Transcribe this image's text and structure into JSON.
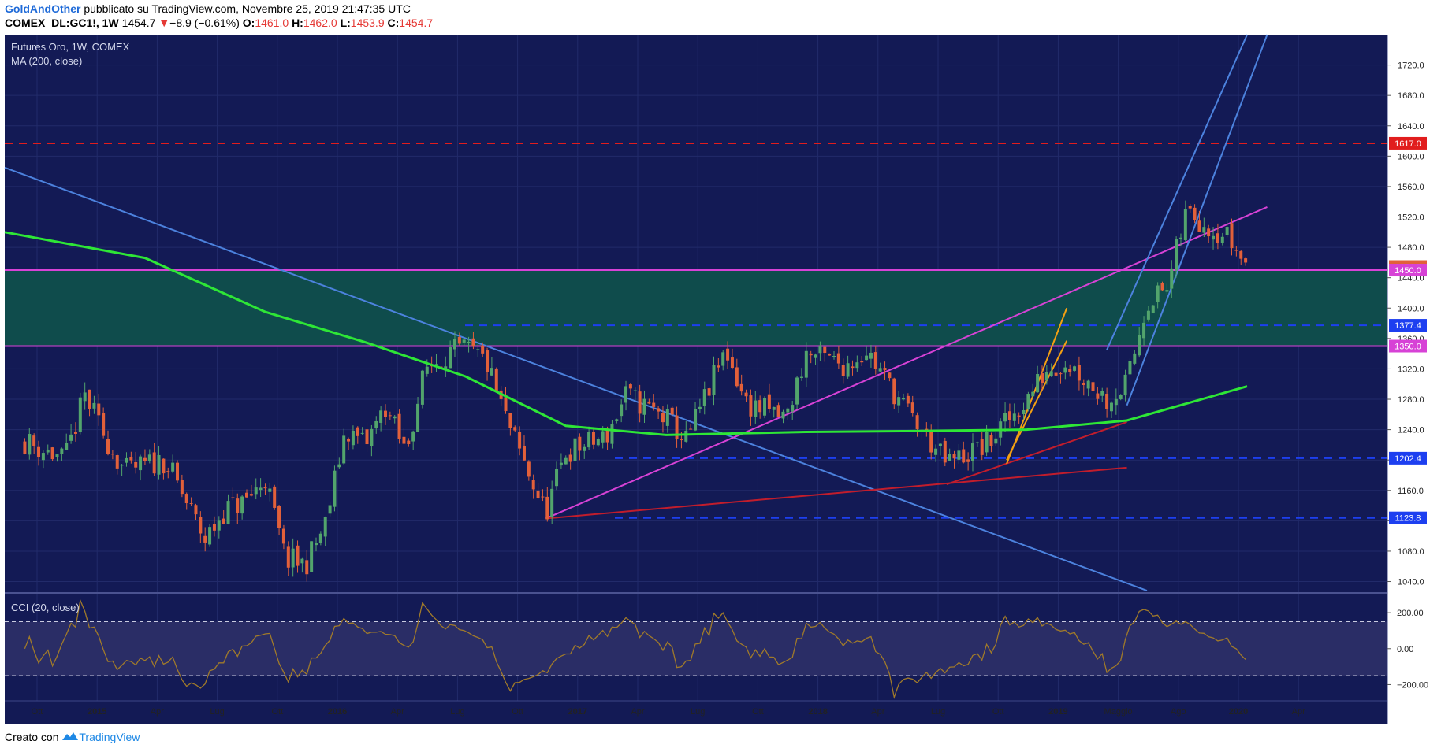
{
  "header": {
    "author": "GoldAndOther",
    "published": "pubblicato su TradingView.com, Novembre 25, 2019 21:47:35 UTC",
    "symbol": "COMEX_DL:GC1!, 1W",
    "last": "1454.7",
    "change": "−8.9 (−0.61%)",
    "o_label": "O:",
    "o": "1461.0",
    "h_label": "H:",
    "h": "1462.0",
    "l_label": "L:",
    "l": "1453.9",
    "c_label": "C:",
    "c": "1454.7"
  },
  "main_pane": {
    "title": "Futures Oro, 1W, COMEX",
    "indicator": "MA (200, close)"
  },
  "cci_pane": {
    "label": "CCI (20, close)"
  },
  "footer": {
    "prefix": "Creato con",
    "brand": "TradingView"
  },
  "colors": {
    "background": "#131a55",
    "grid": "#222b6a",
    "up": "#52a46c",
    "down": "#e2603a",
    "ma": "#2ee636",
    "trendline_blue": "#4c82de",
    "magenta": "#d742d6",
    "resistance_red": "#e11d1d",
    "support_blue": "#1d3ff0",
    "zone": "#0f4c4c",
    "orange": "#f4a012",
    "cci": "#a07a2a"
  },
  "chart_data": [
    {
      "type": "candlestick",
      "title": "Futures Oro, 1W, COMEX",
      "x_ticks": [
        "Ott",
        "2015",
        "Apr",
        "Lug",
        "Ott",
        "2016",
        "Apr",
        "Lug",
        "Ott",
        "2017",
        "Apr",
        "Lug",
        "Ott",
        "2018",
        "Apr",
        "Lug",
        "Ott",
        "2019",
        "Maggio",
        "Ago",
        "2020",
        "Apr"
      ],
      "y_ticks": [
        1040,
        1080,
        1120,
        1160,
        1200,
        1240,
        1280,
        1320,
        1360,
        1400,
        1440,
        1480,
        1520,
        1560,
        1600,
        1640,
        1680,
        1720
      ],
      "ylim": [
        1025,
        1760
      ],
      "grid": true,
      "price_close_path": [
        [
          "2014-10",
          1225
        ],
        [
          "2014-12",
          1200
        ],
        [
          "2015-01",
          1285
        ],
        [
          "2015-02",
          1230
        ],
        [
          "2015-03",
          1185
        ],
        [
          "2015-05",
          1200
        ],
        [
          "2015-07",
          1095
        ],
        [
          "2015-08",
          1135
        ],
        [
          "2015-09",
          1145
        ],
        [
          "2015-10",
          1175
        ],
        [
          "2015-11",
          1070
        ],
        [
          "2015-12",
          1062
        ],
        [
          "2016-01",
          1115
        ],
        [
          "2016-02",
          1240
        ],
        [
          "2016-03",
          1220
        ],
        [
          "2016-04",
          1270
        ],
        [
          "2016-05",
          1210
        ],
        [
          "2016-06",
          1320
        ],
        [
          "2016-07",
          1340
        ],
        [
          "2016-08",
          1345
        ],
        [
          "2016-09",
          1330
        ],
        [
          "2016-10",
          1255
        ],
        [
          "2016-11",
          1190
        ],
        [
          "2016-12",
          1130
        ],
        [
          "2017-01",
          1210
        ],
        [
          "2017-03",
          1230
        ],
        [
          "2017-04",
          1285
        ],
        [
          "2017-06",
          1255
        ],
        [
          "2017-07",
          1225
        ],
        [
          "2017-09",
          1345
        ],
        [
          "2017-10",
          1275
        ],
        [
          "2017-12",
          1255
        ],
        [
          "2018-01",
          1340
        ],
        [
          "2018-03",
          1325
        ],
        [
          "2018-04",
          1345
        ],
        [
          "2018-06",
          1265
        ],
        [
          "2018-08",
          1195
        ],
        [
          "2018-10",
          1220
        ],
        [
          "2018-12",
          1280
        ],
        [
          "2019-01",
          1320
        ],
        [
          "2019-02",
          1330
        ],
        [
          "2019-04",
          1280
        ],
        [
          "2019-05",
          1300
        ],
        [
          "2019-06",
          1410
        ],
        [
          "2019-07",
          1425
        ],
        [
          "2019-08",
          1530
        ],
        [
          "2019-09",
          1510
        ],
        [
          "2019-10",
          1495
        ],
        [
          "2019-11",
          1455
        ]
      ],
      "moving_average_200": [
        [
          "2014-09",
          1500
        ],
        [
          "2015-04",
          1466
        ],
        [
          "2015-10",
          1395
        ],
        [
          "2016-03",
          1355
        ],
        [
          "2016-08",
          1310
        ],
        [
          "2017-01",
          1245
        ],
        [
          "2017-06",
          1233
        ],
        [
          "2018-01",
          1237
        ],
        [
          "2018-06",
          1238
        ],
        [
          "2018-12",
          1240
        ],
        [
          "2019-05",
          1252
        ],
        [
          "2019-11",
          1297
        ]
      ],
      "horizontal_levels": [
        {
          "price": 1617.0,
          "label": "1617.0",
          "style": "dashed",
          "color": "#e11d1d"
        },
        {
          "price": 1454.7,
          "label": "1454.7",
          "style": "label",
          "color": "#e2603a"
        },
        {
          "price": 1450.0,
          "label": "1450.0",
          "style": "solid",
          "color": "#d742d6"
        },
        {
          "price": 1377.4,
          "label": "1377.4",
          "style": "dashed",
          "color": "#1d3ff0"
        },
        {
          "price": 1350.0,
          "label": "1350.0",
          "style": "solid",
          "color": "#d742d6"
        },
        {
          "price": 1202.4,
          "label": "1202.4",
          "style": "dashed",
          "color": "#1d3ff0"
        },
        {
          "price": 1123.8,
          "label": "1123.8",
          "style": "dashed",
          "color": "#1d3ff0"
        }
      ],
      "zone": {
        "from": 1350.0,
        "to": 1450.0
      },
      "trendlines": [
        {
          "color": "#4c82de",
          "from": [
            "2014-09",
            1585
          ],
          "to": [
            "2019-06",
            1028
          ]
        },
        {
          "color": "#d742d6",
          "from": [
            "2016-12",
            1123
          ],
          "to": [
            "2019-12",
            1533
          ]
        },
        {
          "color": "#c21d2c",
          "from": [
            "2016-12",
            1123
          ],
          "to": [
            "2019-05",
            1190
          ]
        },
        {
          "color": "#c21d2c",
          "from": [
            "2018-08",
            1168
          ],
          "to": [
            "2019-05",
            1250
          ]
        },
        {
          "color": "#f4a012",
          "from": [
            "2018-11",
            1195
          ],
          "to": [
            "2019-02",
            1400
          ]
        },
        {
          "color": "#f4a012",
          "from": [
            "2018-11",
            1200
          ],
          "to": [
            "2019-02",
            1357
          ]
        },
        {
          "color": "#4c82de",
          "from": [
            "2019-05",
            1272
          ],
          "to": [
            "2019-12",
            1760
          ]
        },
        {
          "color": "#4c82de",
          "from": [
            "2019-04",
            1345
          ],
          "to": [
            "2019-11",
            1760
          ]
        }
      ]
    },
    {
      "type": "line",
      "title": "CCI (20, close)",
      "y_ticks": [
        -200,
        0,
        200
      ],
      "y_tick_labels": [
        "−200.00",
        "0.00",
        "200.00"
      ],
      "bands": [
        -150,
        150
      ],
      "ylim": [
        -290,
        310
      ],
      "last_value": -80
    }
  ]
}
